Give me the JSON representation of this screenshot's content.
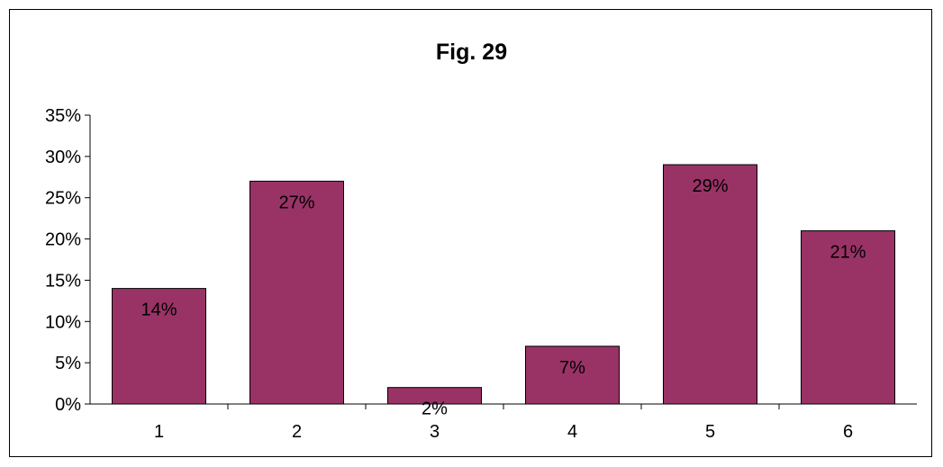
{
  "chart_data": {
    "type": "bar",
    "title": "Fig. 29",
    "categories": [
      "1",
      "2",
      "3",
      "4",
      "5",
      "6"
    ],
    "values": [
      14,
      27,
      2,
      7,
      29,
      21
    ],
    "data_labels": [
      "14%",
      "27%",
      "2%",
      "7%",
      "29%",
      "21%"
    ],
    "y_ticks": [
      "0%",
      "5%",
      "10%",
      "15%",
      "20%",
      "25%",
      "30%",
      "35%"
    ],
    "ylim": [
      0,
      35
    ],
    "y_unit": "%",
    "grid": false,
    "legend": "none",
    "bar_color": "#993366",
    "bar_edge_color": "#000000"
  }
}
